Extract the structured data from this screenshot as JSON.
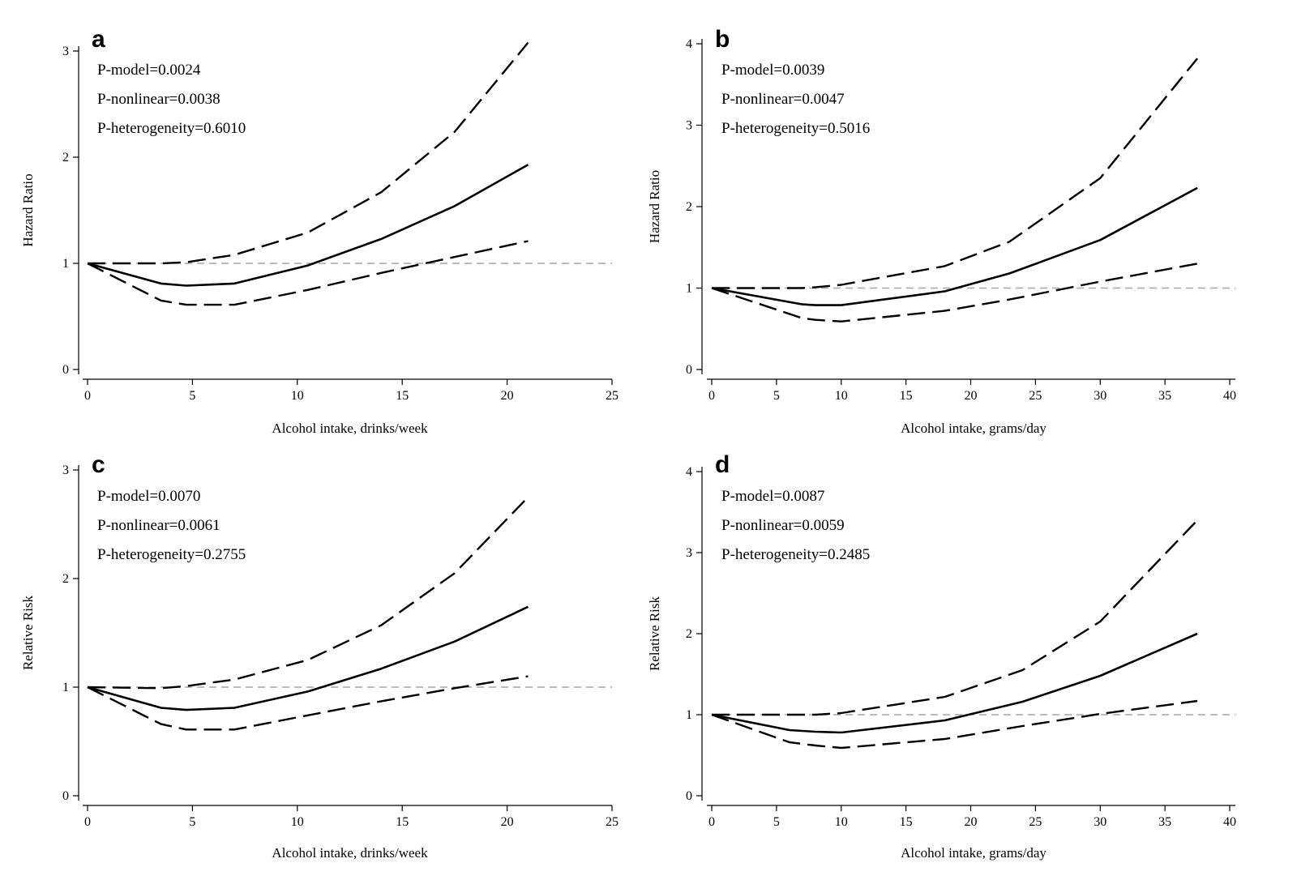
{
  "chart_data": [
    {
      "type": "line",
      "panel_label": "a",
      "xlabel": "Alcohol intake, drinks/week",
      "ylabel": "Hazard Ratio",
      "xlim": [
        0,
        25
      ],
      "ylim": [
        0,
        3
      ],
      "x_ticks": [
        0,
        5,
        10,
        15,
        20,
        25
      ],
      "y_ticks": [
        0,
        1,
        2,
        3
      ],
      "reference_line": 1,
      "annotations": [
        "P-model=0.0024",
        "P-nonlinear=0.0038",
        "P-heterogeneity=0.6010"
      ],
      "series": [
        {
          "role": "estimate",
          "style": "solid",
          "x": [
            0,
            3.5,
            4.7,
            7,
            10.5,
            14,
            17.5,
            21
          ],
          "y": [
            1,
            0.81,
            0.79,
            0.81,
            0.98,
            1.23,
            1.54,
            1.93
          ]
        },
        {
          "role": "upper",
          "style": "dashed",
          "x": [
            0,
            3.5,
            4.7,
            7,
            10.5,
            14,
            17.5,
            21
          ],
          "y": [
            1,
            1.0,
            1.01,
            1.08,
            1.29,
            1.67,
            2.24,
            3.08
          ]
        },
        {
          "role": "lower",
          "style": "dashed",
          "x": [
            0,
            3.5,
            4.7,
            7,
            10.5,
            14,
            17.5,
            21
          ],
          "y": [
            1,
            0.65,
            0.61,
            0.61,
            0.75,
            0.91,
            1.06,
            1.21
          ]
        }
      ]
    },
    {
      "type": "line",
      "panel_label": "b",
      "xlabel": "Alcohol intake, grams/day",
      "ylabel": "Hazard Ratio",
      "xlim": [
        0,
        40
      ],
      "ylim": [
        0,
        4
      ],
      "x_ticks": [
        0,
        5,
        10,
        15,
        20,
        25,
        30,
        35,
        40
      ],
      "y_ticks": [
        0,
        1,
        2,
        3,
        4
      ],
      "reference_line": 1,
      "annotations": [
        "P-model=0.0039",
        "P-nonlinear=0.0047",
        "P-heterogeneity=0.5016"
      ],
      "series": [
        {
          "role": "estimate",
          "style": "solid",
          "x": [
            0,
            7,
            8,
            10,
            18,
            23,
            30,
            37.5
          ],
          "y": [
            1,
            0.8,
            0.79,
            0.79,
            0.96,
            1.18,
            1.59,
            2.23
          ]
        },
        {
          "role": "upper",
          "style": "dashed",
          "x": [
            0,
            7,
            8,
            10,
            18,
            23,
            30,
            37.5
          ],
          "y": [
            1,
            1.0,
            1.01,
            1.04,
            1.27,
            1.57,
            2.35,
            3.82
          ]
        },
        {
          "role": "lower",
          "style": "dashed",
          "x": [
            0,
            7,
            8,
            10,
            18,
            23,
            30,
            37.5
          ],
          "y": [
            1,
            0.63,
            0.61,
            0.59,
            0.72,
            0.86,
            1.08,
            1.3
          ]
        }
      ]
    },
    {
      "type": "line",
      "panel_label": "c",
      "xlabel": "Alcohol intake, drinks/week",
      "ylabel": "Relative Risk",
      "xlim": [
        0,
        25
      ],
      "ylim": [
        0,
        3
      ],
      "x_ticks": [
        0,
        5,
        10,
        15,
        20,
        25
      ],
      "y_ticks": [
        0,
        1,
        2,
        3
      ],
      "reference_line": 1,
      "annotations": [
        "P-model=0.0070",
        "P-nonlinear=0.0061",
        "P-heterogeneity=0.2755"
      ],
      "series": [
        {
          "role": "estimate",
          "style": "solid",
          "x": [
            0,
            3.5,
            4.7,
            7,
            10.5,
            14,
            17.5,
            21
          ],
          "y": [
            1,
            0.81,
            0.79,
            0.81,
            0.96,
            1.17,
            1.42,
            1.74
          ]
        },
        {
          "role": "upper",
          "style": "dashed",
          "x": [
            0,
            3.5,
            4.7,
            7,
            10.5,
            14,
            17.5,
            21
          ],
          "y": [
            1,
            0.99,
            1.01,
            1.07,
            1.25,
            1.57,
            2.05,
            2.75
          ]
        },
        {
          "role": "lower",
          "style": "dashed",
          "x": [
            0,
            3.5,
            4.7,
            7,
            10.5,
            14,
            17.5,
            21
          ],
          "y": [
            1,
            0.66,
            0.61,
            0.61,
            0.74,
            0.87,
            0.99,
            1.1
          ]
        }
      ]
    },
    {
      "type": "line",
      "panel_label": "d",
      "xlabel": "Alcohol intake, grams/day",
      "ylabel": "Relative Risk",
      "xlim": [
        0,
        40
      ],
      "ylim": [
        0,
        4
      ],
      "x_ticks": [
        0,
        5,
        10,
        15,
        20,
        25,
        30,
        35,
        40
      ],
      "y_ticks": [
        0,
        1,
        2,
        3,
        4
      ],
      "reference_line": 1,
      "annotations": [
        "P-model=0.0087",
        "P-nonlinear=0.0059",
        "P-heterogeneity=0.2485"
      ],
      "series": [
        {
          "role": "estimate",
          "style": "solid",
          "x": [
            0,
            6,
            8,
            10,
            18,
            24,
            30,
            37.5
          ],
          "y": [
            1,
            0.81,
            0.79,
            0.78,
            0.93,
            1.16,
            1.48,
            2.0
          ]
        },
        {
          "role": "upper",
          "style": "dashed",
          "x": [
            0,
            6,
            8,
            10,
            18,
            24,
            30,
            37.5
          ],
          "y": [
            1,
            1.0,
            1.0,
            1.02,
            1.22,
            1.55,
            2.15,
            3.4
          ]
        },
        {
          "role": "lower",
          "style": "dashed",
          "x": [
            0,
            6,
            8,
            10,
            18,
            24,
            30,
            37.5
          ],
          "y": [
            1,
            0.66,
            0.62,
            0.59,
            0.7,
            0.86,
            1.01,
            1.17
          ]
        }
      ]
    }
  ]
}
